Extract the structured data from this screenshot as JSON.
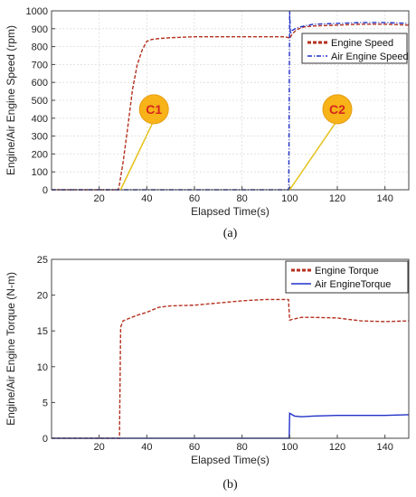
{
  "chart_data": [
    {
      "type": "line",
      "caption": "(a)",
      "xlabel": "Elapsed Time(s)",
      "ylabel": "Engine/Air Engine  Speed (rpm)",
      "xlim": [
        0,
        150
      ],
      "ylim": [
        0,
        1000
      ],
      "xticks": [
        20,
        40,
        60,
        80,
        100,
        120,
        140
      ],
      "yticks": [
        0,
        100,
        200,
        300,
        400,
        500,
        600,
        700,
        800,
        900,
        1000
      ],
      "grid": true,
      "legend_position": "top-right",
      "series": [
        {
          "name": "Engine Speed",
          "color": "#b5301f",
          "style": "dashed",
          "x": [
            0,
            28,
            28.5,
            30,
            32,
            34,
            36,
            38,
            40,
            42,
            45,
            50,
            60,
            70,
            80,
            90,
            98,
            99.5,
            100,
            101,
            103,
            106,
            110,
            120,
            130,
            140,
            150
          ],
          "y": [
            0,
            0,
            30,
            150,
            350,
            560,
            700,
            780,
            830,
            840,
            845,
            850,
            855,
            855,
            855,
            855,
            855,
            850,
            845,
            870,
            895,
            910,
            915,
            920,
            925,
            925,
            920
          ]
        },
        {
          "name": "Air Engine Speed",
          "color": "#2030c8",
          "style": "dashdot",
          "x": [
            0,
            99.6,
            99.8,
            100,
            100.3,
            101,
            103,
            106,
            110,
            120,
            130,
            140,
            150
          ],
          "y": [
            0,
            0,
            500,
            1000,
            870,
            890,
            905,
            915,
            925,
            930,
            935,
            935,
            930
          ]
        }
      ],
      "annotations": [
        {
          "label": "C1",
          "x": 43,
          "y": 450
        },
        {
          "label": "C2",
          "x": 120,
          "y": 450
        }
      ]
    },
    {
      "type": "line",
      "caption": "(b)",
      "xlabel": "Elapsed Time(s)",
      "ylabel": "Engine/Air Engine  Torque (N-m)",
      "xlim": [
        0,
        150
      ],
      "ylim": [
        0,
        25
      ],
      "xticks": [
        20,
        40,
        60,
        80,
        100,
        120,
        140
      ],
      "yticks": [
        0,
        5,
        10,
        15,
        20,
        25
      ],
      "grid": false,
      "legend_position": "top-right",
      "series": [
        {
          "name": "Engine Torque",
          "color": "#b5301f",
          "style": "dashed",
          "x": [
            0,
            28.5,
            29,
            30,
            33,
            36,
            40,
            45,
            50,
            60,
            70,
            80,
            90,
            99.5,
            100,
            101,
            105,
            110,
            120,
            130,
            140,
            150
          ],
          "y": [
            0,
            0,
            15.5,
            16.4,
            16.8,
            17.2,
            17.6,
            18.3,
            18.5,
            18.6,
            18.9,
            19.2,
            19.4,
            19.4,
            16.5,
            16.6,
            16.9,
            16.9,
            16.8,
            16.4,
            16.3,
            16.4
          ]
        },
        {
          "name": "Air Engine Torque",
          "color": "#2030c8",
          "style": "solid",
          "x": [
            0,
            99.8,
            100,
            101,
            102,
            105,
            110,
            120,
            130,
            140,
            150
          ],
          "y": [
            0,
            0,
            3.5,
            3.3,
            3.1,
            3.0,
            3.1,
            3.2,
            3.2,
            3.2,
            3.3
          ]
        }
      ]
    }
  ],
  "legend_labels": {
    "chart_a": [
      "Engine Speed",
      "Air Engine Speed"
    ],
    "chart_b": [
      "Engine Torque",
      "Air EngineTorque"
    ]
  }
}
